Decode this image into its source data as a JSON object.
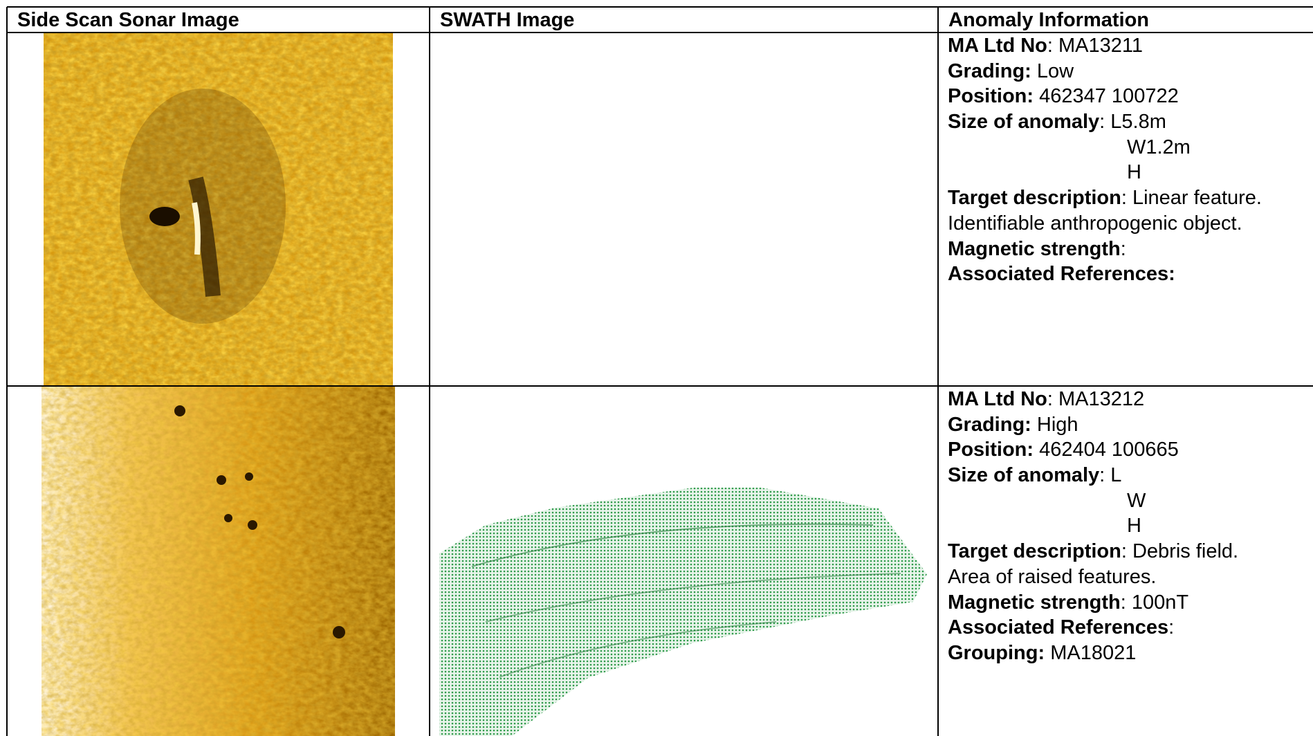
{
  "table": {
    "headers": [
      "Side Scan Sonar Image",
      "SWATH Image",
      "Anomaly Information"
    ],
    "rows": [
      {
        "lines": [
          [
            {
              "text": "MA Ltd No",
              "bold": true
            },
            {
              "text": ": MA13211",
              "bold": false
            }
          ],
          [
            {
              "text": "Grading:",
              "bold": true
            },
            {
              "text": " Low",
              "bold": false
            }
          ],
          [
            {
              "text": "Position:",
              "bold": true
            },
            {
              "text": " 462347 100722",
              "bold": false
            }
          ],
          [
            {
              "text": "Size of anomaly",
              "bold": true
            },
            {
              "text": ": L5.8m",
              "bold": false
            }
          ],
          [
            {
              "text": "W1.2m",
              "bold": false,
              "indent": true
            }
          ],
          [
            {
              "text": "H",
              "bold": false,
              "indent": true
            }
          ],
          [
            {
              "text": "Target description",
              "bold": true
            },
            {
              "text": ": Linear feature.",
              "bold": false
            }
          ],
          [
            {
              "text": "Identifiable anthropogenic object.",
              "bold": false
            }
          ],
          [
            {
              "text": "Magnetic strength",
              "bold": true
            },
            {
              "text": ":",
              "bold": false
            }
          ],
          [
            {
              "text": "Associated References:",
              "bold": true
            }
          ]
        ]
      },
      {
        "lines": [
          [
            {
              "text": "MA Ltd No",
              "bold": true
            },
            {
              "text": ": MA13212",
              "bold": false
            }
          ],
          [
            {
              "text": "Grading:",
              "bold": true
            },
            {
              "text": " High",
              "bold": false
            }
          ],
          [
            {
              "text": "Position:",
              "bold": true
            },
            {
              "text": " 462404 100665",
              "bold": false
            }
          ],
          [
            {
              "text": "Size of anomaly",
              "bold": true
            },
            {
              "text": ": L",
              "bold": false
            }
          ],
          [
            {
              "text": "W",
              "bold": false,
              "indent": true
            }
          ],
          [
            {
              "text": "H",
              "bold": false,
              "indent": true
            }
          ],
          [
            {
              "text": "Target description",
              "bold": true
            },
            {
              "text": ": Debris field.",
              "bold": false
            }
          ],
          [
            {
              "text": "Area of raised features.",
              "bold": false
            }
          ],
          [
            {
              "text": "Magnetic strength",
              "bold": true
            },
            {
              "text": ": 100nT",
              "bold": false
            }
          ],
          [
            {
              "text": "Associated References",
              "bold": true
            },
            {
              "text": ":",
              "bold": false
            }
          ],
          [
            {
              "text": "Grouping:",
              "bold": true
            },
            {
              "text": " MA18021",
              "bold": false
            }
          ]
        ]
      }
    ]
  }
}
